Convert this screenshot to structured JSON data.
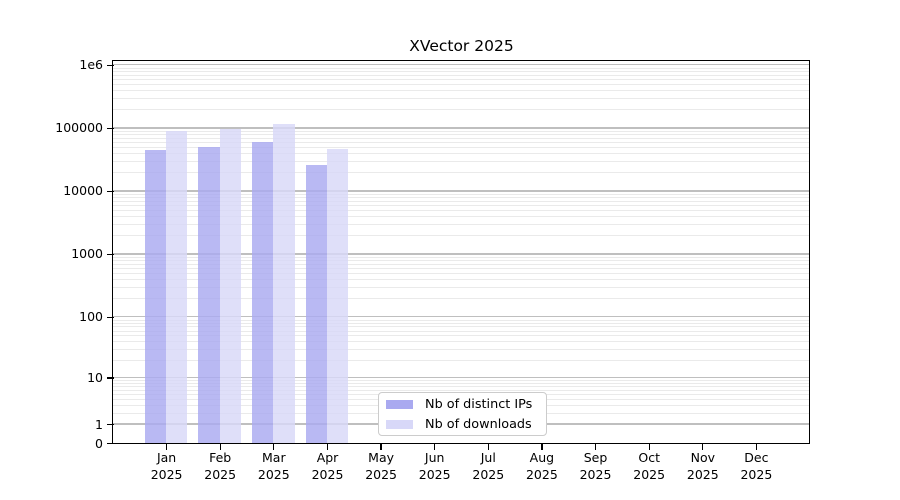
{
  "chart_data": {
    "type": "bar",
    "title": "XVector 2025",
    "x": {
      "months": [
        "Jan",
        "Feb",
        "Mar",
        "Apr",
        "May",
        "Jun",
        "Jul",
        "Aug",
        "Sep",
        "Oct",
        "Nov",
        "Dec"
      ],
      "year": "2025"
    },
    "series": [
      {
        "name": "Nb of distinct IPs",
        "color": "#a9a9f0",
        "values": [
          45000,
          50000,
          59000,
          26000,
          null,
          null,
          null,
          null,
          null,
          null,
          null,
          null
        ]
      },
      {
        "name": "Nb of downloads",
        "color": "#d8d8f8",
        "values": [
          88000,
          95000,
          114000,
          46000,
          null,
          null,
          null,
          null,
          null,
          null,
          null,
          null
        ]
      }
    ],
    "y_axis": {
      "scale": "symlog-log1p",
      "min": 0,
      "max": 1150000,
      "ticks": [
        {
          "value": 1000000,
          "label": "1e6"
        },
        {
          "value": 100000,
          "label": "100000"
        },
        {
          "value": 10000,
          "label": "10000"
        },
        {
          "value": 1000,
          "label": "1000"
        },
        {
          "value": 100,
          "label": "100"
        },
        {
          "value": 10,
          "label": "10"
        },
        {
          "value": 1,
          "label": "1"
        },
        {
          "value": 0,
          "label": "0"
        }
      ]
    },
    "grid": {
      "major_color": "#bfbfbf",
      "minor_color": "#eaeaea",
      "minors_per_decade": "2-9"
    },
    "legend": {
      "position": "bottom-center",
      "entries": [
        "Nb of distinct IPs",
        "Nb of downloads"
      ]
    }
  }
}
